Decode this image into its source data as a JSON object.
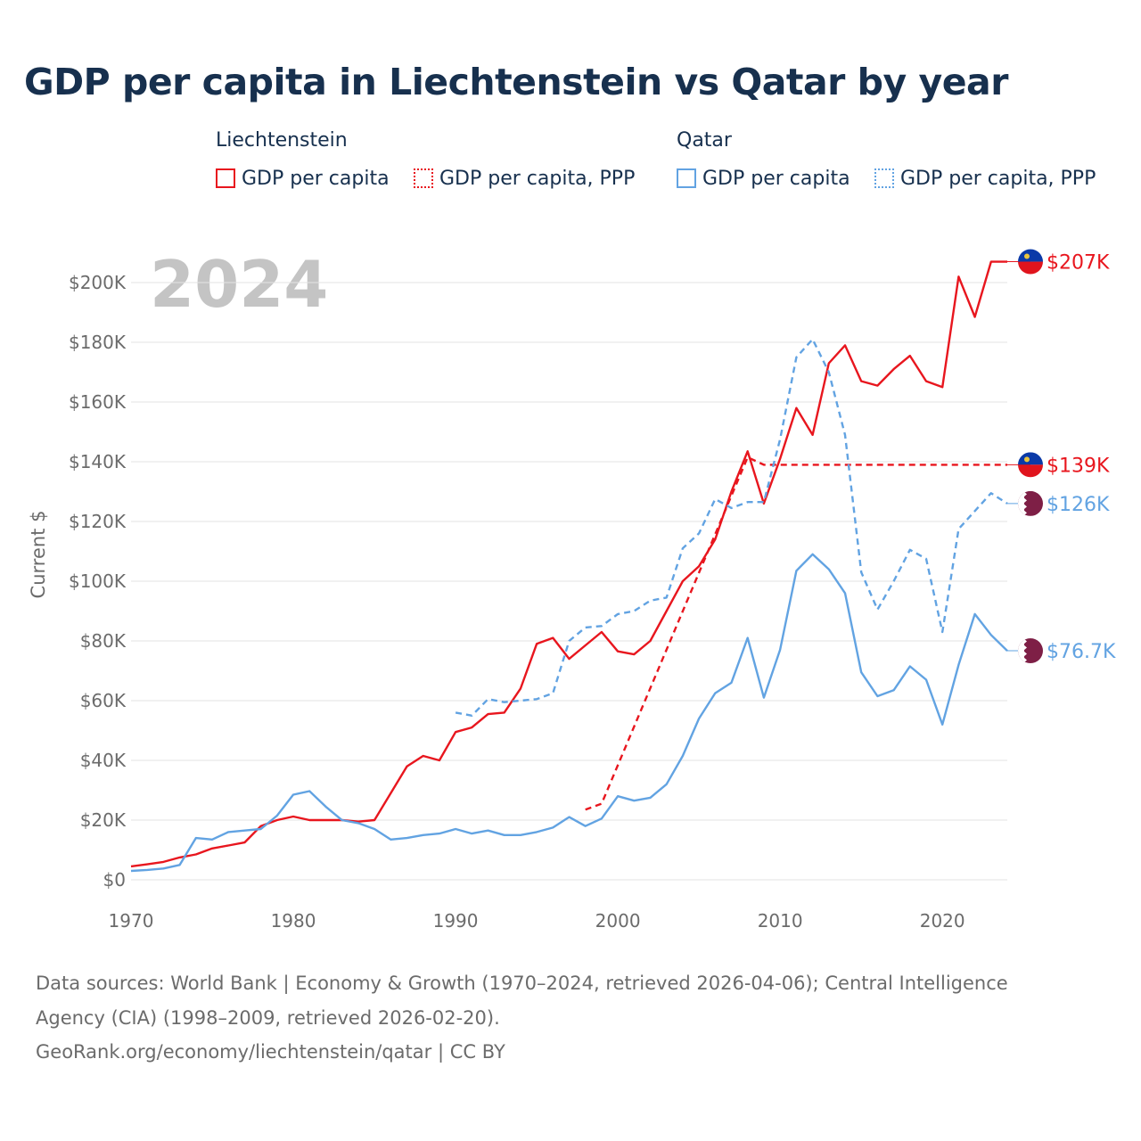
{
  "colors": {
    "liechtenstein": "#e8161e",
    "qatar": "#62a3e2",
    "title": "#17304e",
    "axis_text": "#6b6b6b",
    "year_watermark": "#c4c4c4",
    "grid": "#e3e3e3"
  },
  "title": "GDP per capita in Liechtenstein vs Qatar by year",
  "legend": {
    "groups": [
      {
        "title": "Liechtenstein",
        "items": [
          {
            "label": "GDP per capita",
            "style": "solid",
            "color_key": "liechtenstein"
          },
          {
            "label": "GDP per capita, PPP",
            "style": "dotted",
            "color_key": "liechtenstein"
          }
        ]
      },
      {
        "title": "Qatar",
        "items": [
          {
            "label": "GDP per capita",
            "style": "solid",
            "color_key": "qatar"
          },
          {
            "label": "GDP per capita, PPP",
            "style": "dotted",
            "color_key": "qatar"
          }
        ]
      }
    ]
  },
  "year_watermark": "2024",
  "footer": {
    "line1": "Data sources: World Bank | Economy & Growth (1970–2024, retrieved 2026-04-06); Central Intelligence",
    "line2": "Agency (CIA) (1998–2009, retrieved 2026-02-20).",
    "line3": "GeoRank.org/economy/liechtenstein/qatar | CC BY"
  },
  "chart_data": {
    "type": "line",
    "ylabel": "Current $",
    "xlabel": "",
    "xlim": [
      1970,
      2024
    ],
    "ylim": [
      0,
      200000
    ],
    "grid": true,
    "x_ticks": [
      1970,
      1980,
      1990,
      2000,
      2010,
      2020
    ],
    "x_tick_labels": [
      "1970",
      "1980",
      "1990",
      "2000",
      "2010",
      "2020"
    ],
    "y_ticks": [
      0,
      20000,
      40000,
      60000,
      80000,
      100000,
      120000,
      140000,
      160000,
      180000,
      200000
    ],
    "y_tick_labels": [
      "$0",
      "$20K",
      "$40K",
      "$60K",
      "$80K",
      "$100K",
      "$120K",
      "$140K",
      "$160K",
      "$180K",
      "$200K"
    ],
    "series": [
      {
        "name": "Liechtenstein GDP per capita",
        "country": "Liechtenstein",
        "color_key": "liechtenstein",
        "dash": "solid",
        "end_label": "$207K",
        "flag": "liechtenstein",
        "points": [
          [
            1970,
            4500
          ],
          [
            1971,
            5200
          ],
          [
            1972,
            6000
          ],
          [
            1973,
            7500
          ],
          [
            1974,
            8500
          ],
          [
            1975,
            10500
          ],
          [
            1976,
            11500
          ],
          [
            1977,
            12500
          ],
          [
            1978,
            18000
          ],
          [
            1979,
            20000
          ],
          [
            1980,
            21200
          ],
          [
            1981,
            20000
          ],
          [
            1982,
            20000
          ],
          [
            1983,
            20000
          ],
          [
            1984,
            19500
          ],
          [
            1985,
            20000
          ],
          [
            1986,
            29000
          ],
          [
            1987,
            38000
          ],
          [
            1988,
            41500
          ],
          [
            1989,
            40000
          ],
          [
            1990,
            49500
          ],
          [
            1991,
            51000
          ],
          [
            1992,
            55500
          ],
          [
            1993,
            56000
          ],
          [
            1994,
            64000
          ],
          [
            1995,
            79000
          ],
          [
            1996,
            81000
          ],
          [
            1997,
            74000
          ],
          [
            1998,
            78500
          ],
          [
            1999,
            83000
          ],
          [
            2000,
            76500
          ],
          [
            2001,
            75500
          ],
          [
            2002,
            80000
          ],
          [
            2003,
            90000
          ],
          [
            2004,
            100000
          ],
          [
            2005,
            105000
          ],
          [
            2006,
            114000
          ],
          [
            2007,
            130000
          ],
          [
            2008,
            143500
          ],
          [
            2009,
            126000
          ],
          [
            2010,
            141000
          ],
          [
            2011,
            158000
          ],
          [
            2012,
            149000
          ],
          [
            2013,
            173000
          ],
          [
            2014,
            179000
          ],
          [
            2015,
            167000
          ],
          [
            2016,
            165500
          ],
          [
            2017,
            171000
          ],
          [
            2018,
            175500
          ],
          [
            2019,
            167000
          ],
          [
            2020,
            165000
          ],
          [
            2021,
            202000
          ],
          [
            2022,
            188500
          ],
          [
            2023,
            207000
          ],
          [
            2024,
            207000
          ]
        ]
      },
      {
        "name": "Liechtenstein GDP per capita, PPP",
        "country": "Liechtenstein",
        "color_key": "liechtenstein",
        "dash": "dashed",
        "end_label": "$139K",
        "flag": "liechtenstein",
        "points": [
          [
            1998,
            23500
          ],
          [
            1999,
            25500
          ],
          [
            2008,
            141500
          ],
          [
            2009,
            139000
          ],
          [
            2024,
            139000
          ]
        ]
      },
      {
        "name": "Qatar GDP per capita",
        "country": "Qatar",
        "color_key": "qatar",
        "dash": "solid",
        "end_label": "$76.7K",
        "flag": "qatar",
        "points": [
          [
            1970,
            3000
          ],
          [
            1971,
            3300
          ],
          [
            1972,
            3800
          ],
          [
            1973,
            5000
          ],
          [
            1974,
            14000
          ],
          [
            1975,
            13500
          ],
          [
            1976,
            16000
          ],
          [
            1977,
            16500
          ],
          [
            1978,
            17000
          ],
          [
            1979,
            21500
          ],
          [
            1980,
            28500
          ],
          [
            1981,
            29700
          ],
          [
            1982,
            24500
          ],
          [
            1983,
            20000
          ],
          [
            1984,
            19000
          ],
          [
            1985,
            17000
          ],
          [
            1986,
            13500
          ],
          [
            1987,
            14000
          ],
          [
            1988,
            15000
          ],
          [
            1989,
            15500
          ],
          [
            1990,
            17000
          ],
          [
            1991,
            15500
          ],
          [
            1992,
            16500
          ],
          [
            1993,
            15000
          ],
          [
            1994,
            15000
          ],
          [
            1995,
            16000
          ],
          [
            1996,
            17500
          ],
          [
            1997,
            21000
          ],
          [
            1998,
            18000
          ],
          [
            1999,
            20500
          ],
          [
            2000,
            28000
          ],
          [
            2001,
            26500
          ],
          [
            2002,
            27500
          ],
          [
            2003,
            32000
          ],
          [
            2004,
            41500
          ],
          [
            2005,
            54000
          ],
          [
            2006,
            62500
          ],
          [
            2007,
            66000
          ],
          [
            2008,
            81000
          ],
          [
            2009,
            61000
          ],
          [
            2010,
            77000
          ],
          [
            2011,
            103500
          ],
          [
            2012,
            109000
          ],
          [
            2013,
            104000
          ],
          [
            2014,
            96000
          ],
          [
            2015,
            69500
          ],
          [
            2016,
            61500
          ],
          [
            2017,
            63500
          ],
          [
            2018,
            71500
          ],
          [
            2019,
            67000
          ],
          [
            2020,
            52000
          ],
          [
            2021,
            72000
          ],
          [
            2022,
            89000
          ],
          [
            2023,
            82000
          ],
          [
            2024,
            76700
          ]
        ]
      },
      {
        "name": "Qatar GDP per capita, PPP",
        "country": "Qatar",
        "color_key": "qatar",
        "dash": "dashed",
        "end_label": "$126K",
        "flag": "qatar",
        "points": [
          [
            1990,
            56000
          ],
          [
            1991,
            55000
          ],
          [
            1992,
            60500
          ],
          [
            1993,
            59500
          ],
          [
            1994,
            60000
          ],
          [
            1995,
            60500
          ],
          [
            1996,
            62500
          ],
          [
            1997,
            80000
          ],
          [
            1998,
            84500
          ],
          [
            1999,
            85000
          ],
          [
            2000,
            89000
          ],
          [
            2001,
            90000
          ],
          [
            2002,
            93500
          ],
          [
            2003,
            94500
          ],
          [
            2004,
            111000
          ],
          [
            2005,
            116000
          ],
          [
            2006,
            127500
          ],
          [
            2007,
            124500
          ],
          [
            2008,
            126500
          ],
          [
            2009,
            126500
          ],
          [
            2010,
            147500
          ],
          [
            2011,
            175000
          ],
          [
            2012,
            181000
          ],
          [
            2013,
            170000
          ],
          [
            2014,
            149000
          ],
          [
            2015,
            103000
          ],
          [
            2016,
            90500
          ],
          [
            2017,
            100000
          ],
          [
            2018,
            110500
          ],
          [
            2019,
            107500
          ],
          [
            2020,
            83000
          ],
          [
            2021,
            117500
          ],
          [
            2022,
            123500
          ],
          [
            2023,
            129500
          ],
          [
            2024,
            126000
          ]
        ]
      }
    ]
  }
}
